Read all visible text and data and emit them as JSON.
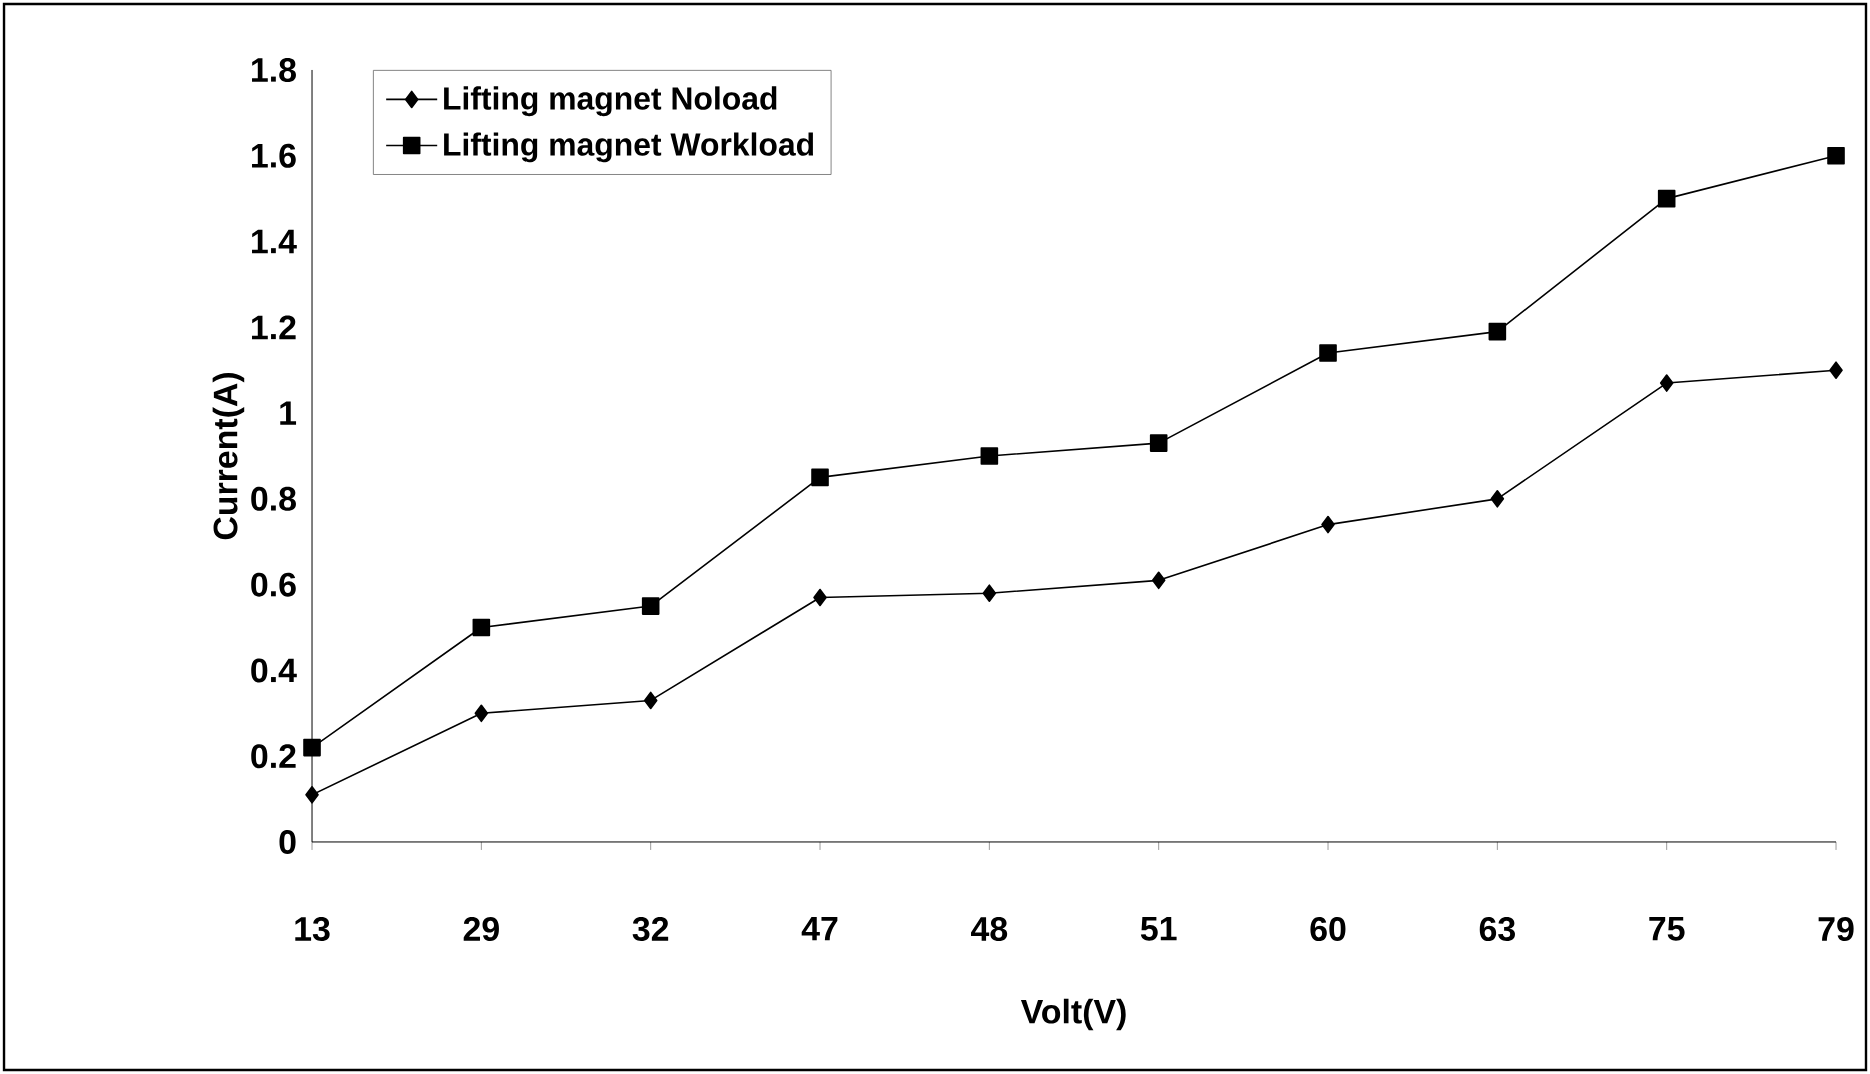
{
  "chart_data": {
    "type": "line",
    "xlabel": "Volt(V)",
    "ylabel": "Current(A)",
    "categories": [
      "13",
      "29",
      "32",
      "47",
      "48",
      "51",
      "60",
      "63",
      "75",
      "79"
    ],
    "series": [
      {
        "name": "Lifting magnet Noload",
        "color": "#000000",
        "marker": "diamond",
        "values": [
          0.11,
          0.3,
          0.33,
          0.57,
          0.58,
          0.61,
          0.74,
          0.8,
          1.07,
          1.1
        ]
      },
      {
        "name": "Lifting magnet Workload",
        "color": "#000000",
        "marker": "square",
        "values": [
          0.22,
          0.5,
          0.55,
          0.85,
          0.9,
          0.93,
          1.14,
          1.19,
          1.5,
          1.6
        ]
      }
    ],
    "ylim": [
      0,
      1.8
    ],
    "yticks": [
      0,
      0.2,
      0.4,
      0.6,
      0.8,
      1,
      1.2,
      1.4,
      1.6,
      1.8
    ],
    "grid": false,
    "legend": "top left",
    "line_style": "solid"
  }
}
